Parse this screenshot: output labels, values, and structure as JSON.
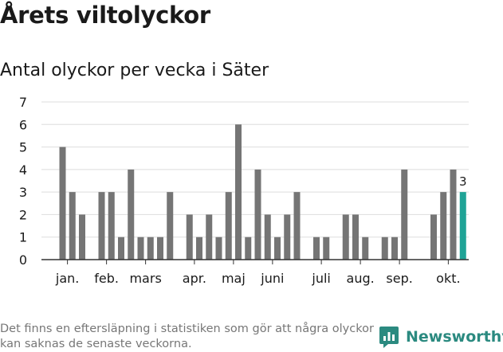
{
  "header": {
    "title": "Årets viltolyckor",
    "subtitle": "Antal olyckor per vecka i Säter"
  },
  "footer": {
    "note": "Det finns en eftersläpning i statistiken som gör att några olyckor kan saknas de senaste veckorna.",
    "brand": "Newsworthy",
    "brand_icon": "newsworthy-logo-icon"
  },
  "colors": {
    "bar": "#757575",
    "highlight": "#1fa396",
    "grid": "#dddddd",
    "axis": "#333333",
    "brand": "#2b8a80"
  },
  "chart_data": {
    "type": "bar",
    "title": "Antal olyckor per vecka i Säter",
    "xlabel": "",
    "ylabel": "",
    "ylim": [
      0,
      7
    ],
    "yticks": [
      0,
      1,
      2,
      3,
      4,
      5,
      6,
      7
    ],
    "grid": true,
    "x": [
      1,
      2,
      3,
      4,
      5,
      6,
      7,
      8,
      9,
      10,
      11,
      12,
      13,
      14,
      15,
      16,
      17,
      18,
      19,
      20,
      21,
      22,
      23,
      24,
      25,
      26,
      27,
      28,
      29,
      30,
      31,
      32,
      33,
      34,
      35,
      36,
      37,
      38,
      39,
      40,
      41,
      42
    ],
    "values": [
      5,
      3,
      2,
      0,
      3,
      3,
      1,
      4,
      1,
      1,
      1,
      3,
      0,
      2,
      1,
      2,
      1,
      3,
      6,
      1,
      4,
      2,
      1,
      2,
      3,
      0,
      1,
      1,
      0,
      2,
      2,
      1,
      0,
      1,
      1,
      4,
      0,
      0,
      2,
      3,
      4,
      3
    ],
    "highlight_index": 41,
    "data_labels": [
      {
        "index": 41,
        "text": "3"
      }
    ],
    "months": [
      {
        "label": "jan.",
        "at": 1.5
      },
      {
        "label": "feb.",
        "at": 5.5
      },
      {
        "label": "mars",
        "at": 9.5
      },
      {
        "label": "apr.",
        "at": 14.5
      },
      {
        "label": "maj",
        "at": 18.5
      },
      {
        "label": "juni",
        "at": 22.5
      },
      {
        "label": "juli",
        "at": 27.5
      },
      {
        "label": "aug.",
        "at": 31.5
      },
      {
        "label": "sep.",
        "at": 35.5
      },
      {
        "label": "okt.",
        "at": 40.5
      }
    ]
  }
}
